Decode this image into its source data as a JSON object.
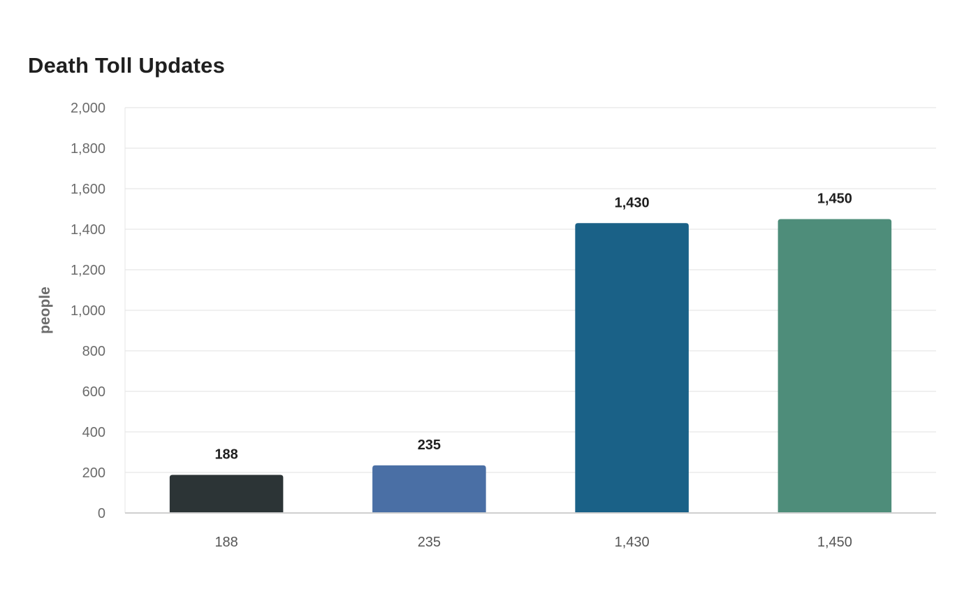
{
  "chart_data": {
    "type": "bar",
    "title": "Death Toll Updates",
    "xlabel": "",
    "ylabel": "people",
    "categories": [
      "188",
      "235",
      "1,430",
      "1,450"
    ],
    "values": [
      188,
      235,
      1430,
      1450
    ],
    "data_labels": [
      "188",
      "235",
      "1,430",
      "1,450"
    ],
    "colors": [
      "#2c3436",
      "#4a6fa5",
      "#1a6187",
      "#4e8d7a"
    ],
    "ylim": [
      0,
      2000
    ],
    "yticks": [
      0,
      200,
      400,
      600,
      800,
      1000,
      1200,
      1400,
      1600,
      1800,
      2000
    ],
    "ytick_labels": [
      "0",
      "200",
      "400",
      "600",
      "800",
      "1,000",
      "1,200",
      "1,400",
      "1,600",
      "1,800",
      "2,000"
    ],
    "grid": true,
    "legend": "none"
  }
}
